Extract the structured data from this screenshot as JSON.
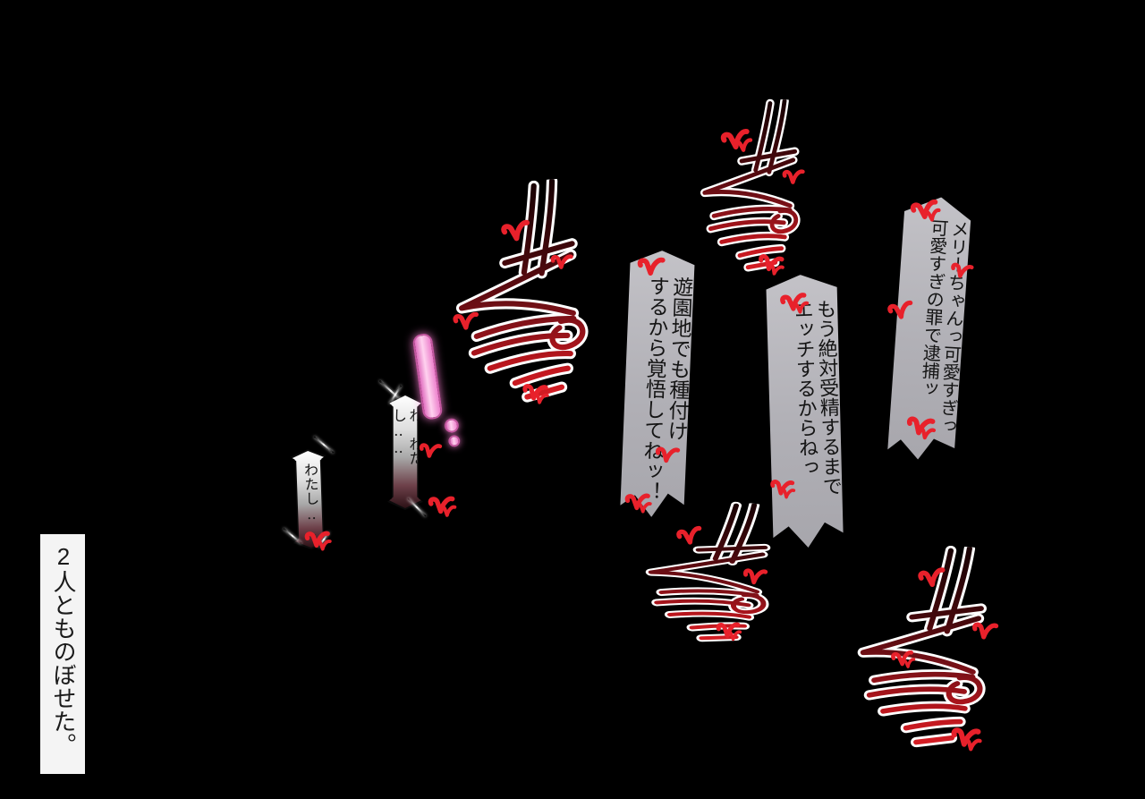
{
  "caption": {
    "text": "2人とものぼせた。"
  },
  "speech": {
    "hesitant_small": {
      "text": "わたし‥‥"
    },
    "hesitant": {
      "text": "わ、わたし‥‥"
    },
    "exclamation": {
      "glyph": "！"
    }
  },
  "banners": [
    {
      "id": "amusement-park",
      "line1": "遊園地でも種付け",
      "line2": "するから覚悟してねッ！"
    },
    {
      "id": "insemination",
      "line1": "もう絶対受精するまで",
      "line2": "エッチするからねっ"
    },
    {
      "id": "arrest",
      "line1": "メリーちゃんっ可愛すぎっ",
      "line2": "可愛すぎの罪で逮捕ッ"
    }
  ],
  "sfx": {
    "kiss_label": "ちゅ"
  },
  "icons": {
    "heart_check": "red check-shaped heart mark",
    "kiss_sfx": "brush-stroke kiss sound",
    "exclamation_mark": "pink glowing exclamation"
  },
  "colors": {
    "background": "#000000",
    "heart_red": "#e8212b",
    "banner_gray": "#b5b4b9",
    "caption_bg": "#f4f4f4",
    "exclamation_pink": "#f68fd2",
    "sfx_red": "#d81e24",
    "sfx_dark": "#2a0507"
  }
}
